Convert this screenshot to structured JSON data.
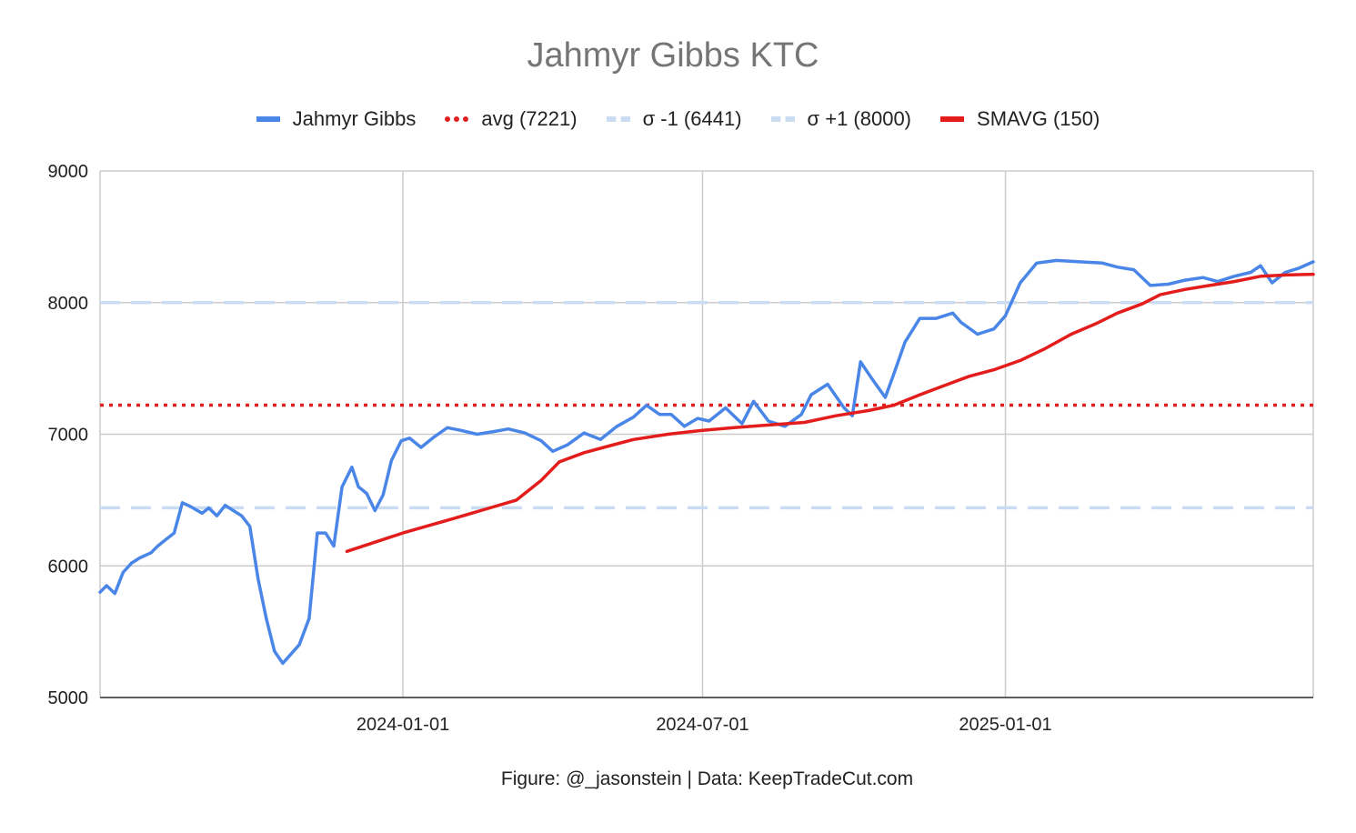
{
  "chart_data": {
    "type": "line",
    "title": "Jahmyr Gibbs KTC",
    "xlabel": "",
    "ylabel": "",
    "ylim": [
      5000,
      9000
    ],
    "xlim": [
      "2023-07-01",
      "2025-07-07"
    ],
    "yticks": [
      5000,
      6000,
      7000,
      8000,
      9000
    ],
    "xticks": [
      "2024-01-01",
      "2024-07-01",
      "2025-01-01"
    ],
    "grid": true,
    "legend": "top",
    "series": [
      {
        "name": "Jahmyr Gibbs",
        "color": "#4a86e8",
        "style": "solid",
        "points": [
          [
            "2023-07-01",
            5800
          ],
          [
            "2023-07-05",
            5850
          ],
          [
            "2023-07-10",
            5790
          ],
          [
            "2023-07-15",
            5950
          ],
          [
            "2023-07-20",
            6020
          ],
          [
            "2023-07-25",
            6060
          ],
          [
            "2023-08-01",
            6100
          ],
          [
            "2023-08-05",
            6150
          ],
          [
            "2023-08-10",
            6200
          ],
          [
            "2023-08-15",
            6250
          ],
          [
            "2023-08-20",
            6480
          ],
          [
            "2023-08-25",
            6450
          ],
          [
            "2023-09-01",
            6400
          ],
          [
            "2023-09-05",
            6440
          ],
          [
            "2023-09-10",
            6380
          ],
          [
            "2023-09-15",
            6460
          ],
          [
            "2023-09-20",
            6420
          ],
          [
            "2023-09-25",
            6380
          ],
          [
            "2023-09-30",
            6300
          ],
          [
            "2023-10-05",
            5900
          ],
          [
            "2023-10-10",
            5600
          ],
          [
            "2023-10-15",
            5350
          ],
          [
            "2023-10-20",
            5260
          ],
          [
            "2023-10-25",
            5330
          ],
          [
            "2023-10-30",
            5400
          ],
          [
            "2023-11-05",
            5600
          ],
          [
            "2023-11-10",
            6250
          ],
          [
            "2023-11-15",
            6250
          ],
          [
            "2023-11-20",
            6150
          ],
          [
            "2023-11-25",
            6600
          ],
          [
            "2023-12-01",
            6750
          ],
          [
            "2023-12-05",
            6600
          ],
          [
            "2023-12-10",
            6550
          ],
          [
            "2023-12-15",
            6420
          ],
          [
            "2023-12-20",
            6540
          ],
          [
            "2023-12-25",
            6800
          ],
          [
            "2023-12-31",
            6950
          ],
          [
            "2024-01-05",
            6970
          ],
          [
            "2024-01-12",
            6900
          ],
          [
            "2024-01-20",
            6980
          ],
          [
            "2024-01-28",
            7050
          ],
          [
            "2024-02-05",
            7030
          ],
          [
            "2024-02-15",
            7000
          ],
          [
            "2024-02-25",
            7020
          ],
          [
            "2024-03-05",
            7040
          ],
          [
            "2024-03-15",
            7010
          ],
          [
            "2024-03-25",
            6950
          ],
          [
            "2024-04-01",
            6870
          ],
          [
            "2024-04-10",
            6920
          ],
          [
            "2024-04-20",
            7010
          ],
          [
            "2024-04-30",
            6960
          ],
          [
            "2024-05-10",
            7060
          ],
          [
            "2024-05-20",
            7130
          ],
          [
            "2024-05-28",
            7220
          ],
          [
            "2024-06-05",
            7150
          ],
          [
            "2024-06-12",
            7150
          ],
          [
            "2024-06-20",
            7060
          ],
          [
            "2024-06-28",
            7120
          ],
          [
            "2024-07-05",
            7100
          ],
          [
            "2024-07-15",
            7200
          ],
          [
            "2024-07-25",
            7080
          ],
          [
            "2024-08-01",
            7250
          ],
          [
            "2024-08-10",
            7100
          ],
          [
            "2024-08-20",
            7060
          ],
          [
            "2024-08-30",
            7150
          ],
          [
            "2024-09-05",
            7300
          ],
          [
            "2024-09-15",
            7380
          ],
          [
            "2024-09-25",
            7200
          ],
          [
            "2024-09-30",
            7140
          ],
          [
            "2024-10-05",
            7550
          ],
          [
            "2024-10-12",
            7420
          ],
          [
            "2024-10-20",
            7280
          ],
          [
            "2024-10-25",
            7450
          ],
          [
            "2024-11-01",
            7700
          ],
          [
            "2024-11-10",
            7880
          ],
          [
            "2024-11-20",
            7880
          ],
          [
            "2024-11-30",
            7920
          ],
          [
            "2024-12-05",
            7850
          ],
          [
            "2024-12-15",
            7760
          ],
          [
            "2024-12-25",
            7800
          ],
          [
            "2025-01-01",
            7900
          ],
          [
            "2025-01-10",
            8150
          ],
          [
            "2025-01-20",
            8300
          ],
          [
            "2025-02-01",
            8320
          ],
          [
            "2025-02-15",
            8310
          ],
          [
            "2025-03-01",
            8300
          ],
          [
            "2025-03-10",
            8270
          ],
          [
            "2025-03-20",
            8250
          ],
          [
            "2025-03-30",
            8130
          ],
          [
            "2025-04-10",
            8140
          ],
          [
            "2025-04-20",
            8170
          ],
          [
            "2025-05-01",
            8190
          ],
          [
            "2025-05-10",
            8160
          ],
          [
            "2025-05-20",
            8200
          ],
          [
            "2025-05-30",
            8230
          ],
          [
            "2025-06-05",
            8280
          ],
          [
            "2025-06-12",
            8150
          ],
          [
            "2025-06-20",
            8230
          ],
          [
            "2025-06-28",
            8260
          ],
          [
            "2025-07-07",
            8310
          ]
        ]
      },
      {
        "name": "avg (7221)",
        "color": "#e02020",
        "style": "dotted",
        "points": [
          [
            "2023-07-01",
            7221
          ],
          [
            "2025-07-07",
            7221
          ]
        ]
      },
      {
        "name": "σ -1 (6441)",
        "color": "#c9dcf2",
        "style": "dashed",
        "points": [
          [
            "2023-07-01",
            6441
          ],
          [
            "2025-07-07",
            6441
          ]
        ]
      },
      {
        "name": "σ +1 (8000)",
        "color": "#c9dcf2",
        "style": "dashed",
        "points": [
          [
            "2023-07-01",
            8000
          ],
          [
            "2025-07-07",
            8000
          ]
        ]
      },
      {
        "name": "SMAVG (150)",
        "color": "#e31c1c",
        "style": "solid",
        "points": [
          [
            "2023-11-28",
            6110
          ],
          [
            "2023-12-15",
            6180
          ],
          [
            "2024-01-01",
            6250
          ],
          [
            "2024-01-15",
            6300
          ],
          [
            "2024-02-01",
            6360
          ],
          [
            "2024-02-20",
            6430
          ],
          [
            "2024-03-10",
            6500
          ],
          [
            "2024-03-25",
            6650
          ],
          [
            "2024-04-05",
            6790
          ],
          [
            "2024-04-20",
            6860
          ],
          [
            "2024-05-05",
            6910
          ],
          [
            "2024-05-20",
            6960
          ],
          [
            "2024-06-10",
            7000
          ],
          [
            "2024-07-01",
            7030
          ],
          [
            "2024-07-20",
            7050
          ],
          [
            "2024-08-10",
            7070
          ],
          [
            "2024-09-01",
            7090
          ],
          [
            "2024-09-20",
            7140
          ],
          [
            "2024-10-10",
            7180
          ],
          [
            "2024-10-25",
            7220
          ],
          [
            "2024-11-10",
            7300
          ],
          [
            "2024-11-25",
            7370
          ],
          [
            "2024-12-10",
            7440
          ],
          [
            "2024-12-25",
            7490
          ],
          [
            "2025-01-10",
            7560
          ],
          [
            "2025-01-25",
            7650
          ],
          [
            "2025-02-10",
            7760
          ],
          [
            "2025-02-25",
            7840
          ],
          [
            "2025-03-10",
            7920
          ],
          [
            "2025-03-25",
            7990
          ],
          [
            "2025-04-05",
            8060
          ],
          [
            "2025-04-20",
            8100
          ],
          [
            "2025-05-05",
            8130
          ],
          [
            "2025-05-20",
            8160
          ],
          [
            "2025-06-05",
            8200
          ],
          [
            "2025-06-20",
            8210
          ],
          [
            "2025-07-07",
            8215
          ]
        ]
      }
    ]
  },
  "footer": "Figure: @_jasonstein | Data: KeepTradeCut.com"
}
